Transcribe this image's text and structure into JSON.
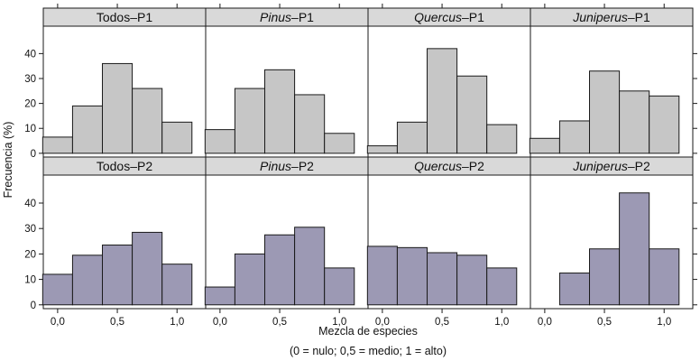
{
  "chart_data": {
    "type": "bar",
    "layout": "lattice 4 columns x 2 rows, shared axes",
    "ylabel": "Frecuencia (%)",
    "xlabel": "Mezcla de especies",
    "xlabel_note": "(0 = nulo; 0,5 = medio; 1 = alto)",
    "x_ticks": [
      "0,0",
      "0,5",
      "1,0"
    ],
    "x_tick_values": [
      0,
      0.5,
      1.0
    ],
    "y_ticks": [
      "0",
      "10",
      "20",
      "30",
      "40"
    ],
    "y_tick_values": [
      0,
      10,
      20,
      30,
      40
    ],
    "ylim": [
      -1.5,
      51
    ],
    "xlim": [
      -0.12,
      1.24
    ],
    "bin_edges": [
      -0.125,
      0.125,
      0.375,
      0.625,
      0.875,
      1.125
    ],
    "colors": {
      "P1": "#c6c6c6",
      "P2": "#9c99b4",
      "strip": "#d9d9d9",
      "edge": "#1a1a1a"
    },
    "panels": [
      {
        "row": "P1",
        "species": "Todos",
        "italic": false,
        "suffix": "–P1",
        "values": [
          6.5,
          19,
          36,
          26,
          12.5
        ]
      },
      {
        "row": "P1",
        "species": "Pinus",
        "italic": true,
        "suffix": "–P1",
        "values": [
          9.5,
          26,
          33.5,
          23.5,
          8
        ]
      },
      {
        "row": "P1",
        "species": "Quercus",
        "italic": true,
        "suffix": "–P1",
        "values": [
          3,
          12.5,
          42,
          31,
          11.5
        ]
      },
      {
        "row": "P1",
        "species": "Juniperus",
        "italic": true,
        "suffix": "–P1",
        "values": [
          6,
          13,
          33,
          25,
          23
        ]
      },
      {
        "row": "P2",
        "species": "Todos",
        "italic": false,
        "suffix": "–P2",
        "values": [
          12,
          19.5,
          23.5,
          28.5,
          16
        ]
      },
      {
        "row": "P2",
        "species": "Pinus",
        "italic": true,
        "suffix": "–P2",
        "values": [
          7,
          20,
          27.5,
          30.5,
          14.5
        ]
      },
      {
        "row": "P2",
        "species": "Quercus",
        "italic": true,
        "suffix": "–P2",
        "values": [
          23,
          22.5,
          20.5,
          19.5,
          14.5
        ]
      },
      {
        "row": "P2",
        "species": "Juniperus",
        "italic": true,
        "suffix": "–P2",
        "values": [
          0,
          12.5,
          22,
          44,
          22
        ]
      }
    ]
  }
}
